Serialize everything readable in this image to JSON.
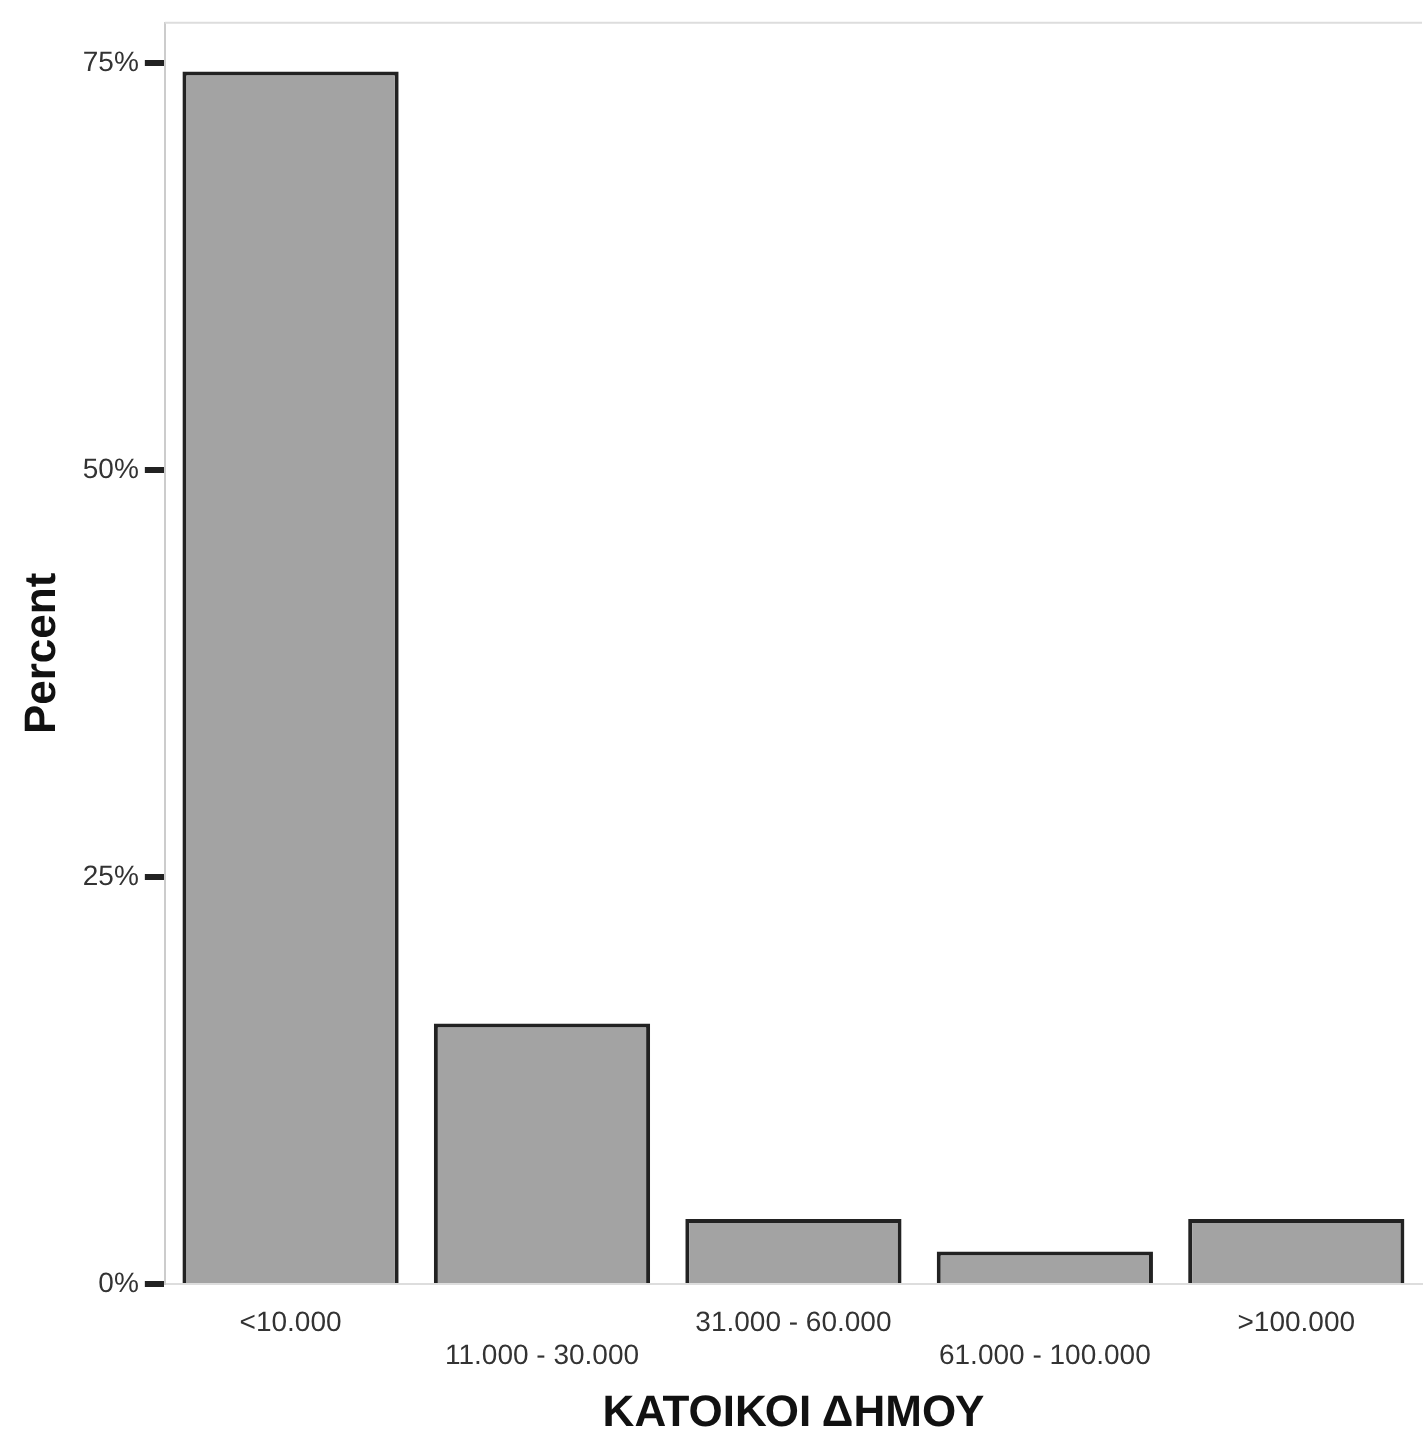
{
  "chart_data": {
    "type": "bar",
    "xlabel": "ΚΑΤΟΙΚΟΙ ΔΗΜΟΥ",
    "ylabel": "Percent",
    "categories": [
      "<10.000",
      "11.000 - 30.000",
      "31.000 - 60.000",
      "61.000 - 100.000",
      ">100.000"
    ],
    "values": [
      74.5,
      16,
      4,
      2,
      4
    ],
    "color": "#a3a3a3",
    "ylim": [
      0,
      77.5
    ],
    "yticks": [
      {
        "value": 0,
        "label": "0%"
      },
      {
        "value": 25,
        "label": "25%"
      },
      {
        "value": 50,
        "label": "50%"
      },
      {
        "value": 75,
        "label": "75%"
      }
    ],
    "grid": false,
    "legend": false
  }
}
